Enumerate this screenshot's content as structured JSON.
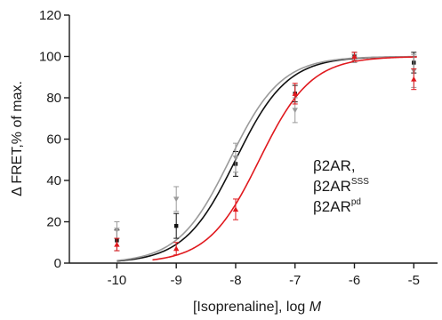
{
  "chart_data": {
    "type": "scatter",
    "xlabel_main": "[Isoprenaline], log ",
    "xlabel_italic": "M",
    "ylabel": "Δ FRET,% of max.",
    "xlim": [
      -10.8,
      -4.6
    ],
    "ylim": [
      0,
      120
    ],
    "xticks": [
      -10,
      -9,
      -8,
      -7,
      -6,
      -5
    ],
    "yticks": [
      0,
      20,
      40,
      60,
      80,
      100,
      120
    ],
    "grid": false,
    "legend_position": "right",
    "legend": [
      {
        "base": "β2AR,",
        "sup": ""
      },
      {
        "base": "β2AR",
        "sup": "SSS"
      },
      {
        "base": "β2AR",
        "sup": "pd"
      }
    ],
    "series": [
      {
        "marker": "square",
        "color": "#111111",
        "x": [
          -10,
          -9,
          -8,
          -7,
          -6,
          -5
        ],
        "y": [
          11,
          18,
          48,
          82,
          100,
          97
        ],
        "err": [
          5,
          6,
          6,
          4,
          2,
          5
        ],
        "logEC50": -8.0,
        "hill": 1.0,
        "curve_start": -10
      },
      {
        "marker": "triangle-down",
        "color": "#9a9a9a",
        "x": [
          -10,
          -9,
          -8,
          -7,
          -6,
          -5
        ],
        "y": [
          16,
          31,
          51,
          74,
          99,
          93
        ],
        "err": [
          4,
          6,
          7,
          6,
          2,
          8
        ],
        "logEC50": -8.1,
        "hill": 1.0,
        "curve_start": -10
      },
      {
        "marker": "triangle",
        "color": "#e0191e",
        "x": [
          -10,
          -9,
          -8,
          -7,
          -6,
          -5
        ],
        "y": [
          9,
          7,
          26,
          82,
          100,
          89
        ],
        "err": [
          3,
          3,
          5,
          5,
          2,
          5
        ],
        "logEC50": -7.6,
        "hill": 1.0,
        "curve_start": -9.4
      }
    ]
  }
}
